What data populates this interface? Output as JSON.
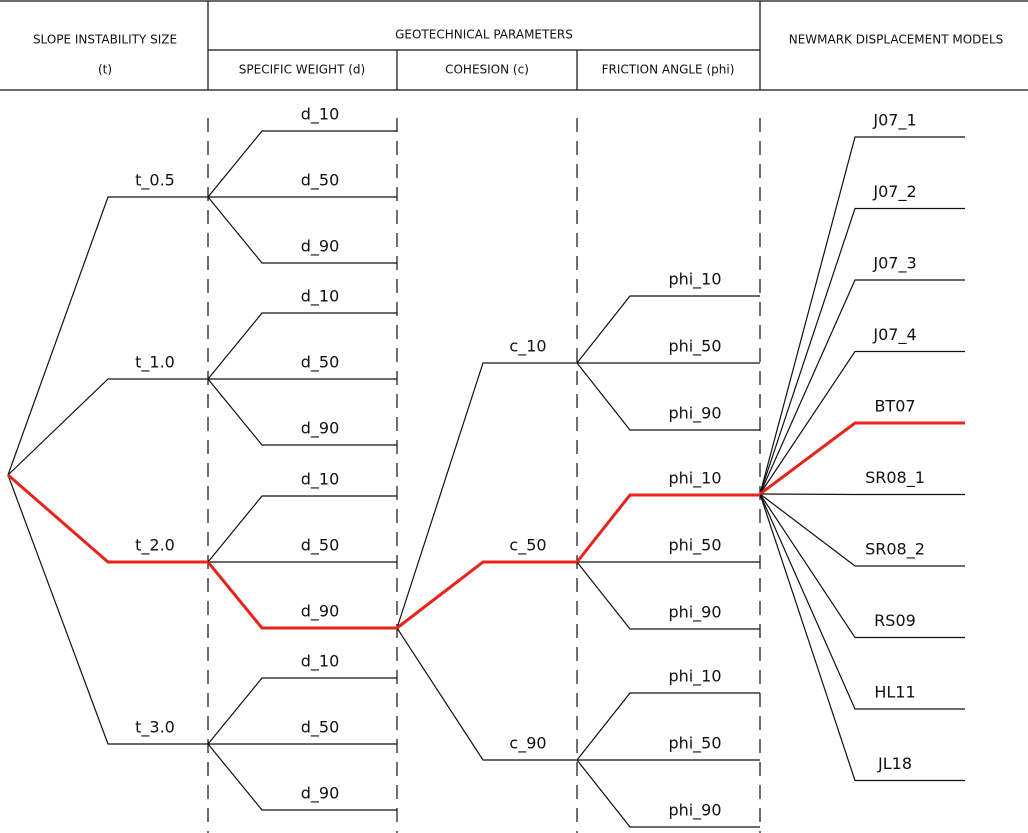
{
  "header": {
    "slope": {
      "title": "SLOPE INSTABILITY SIZE",
      "unit": "(t)"
    },
    "geotechnical": {
      "title": "GEOTECHNICAL PARAMETERS",
      "columns": [
        "SPECIFIC WEIGHT (d)",
        "COHESION (c)",
        "FRICTION ANGLE (phi)"
      ]
    },
    "models": {
      "title": "NEWMARK DISPLACEMENT MODELS"
    }
  },
  "tree": {
    "slope_sizes": [
      "t_0.5",
      "t_1.0",
      "t_2.0",
      "t_3.0"
    ],
    "specific_weight_groups": [
      [
        "d_10",
        "d_50",
        "d_90"
      ],
      [
        "d_10",
        "d_50",
        "d_90"
      ],
      [
        "d_10",
        "d_50",
        "d_90"
      ],
      [
        "d_10",
        "d_50",
        "d_90"
      ]
    ],
    "cohesion": [
      "c_10",
      "c_50",
      "c_90"
    ],
    "friction_angle_groups": [
      [
        "phi_10",
        "phi_50",
        "phi_90"
      ],
      [
        "phi_10",
        "phi_50",
        "phi_90"
      ],
      [
        "phi_10",
        "phi_50",
        "phi_90"
      ]
    ],
    "models": [
      "J07_1",
      "J07_2",
      "J07_3",
      "J07_4",
      "BT07",
      "SR08_1",
      "SR08_2",
      "RS09",
      "HL11",
      "JL18"
    ]
  }
}
